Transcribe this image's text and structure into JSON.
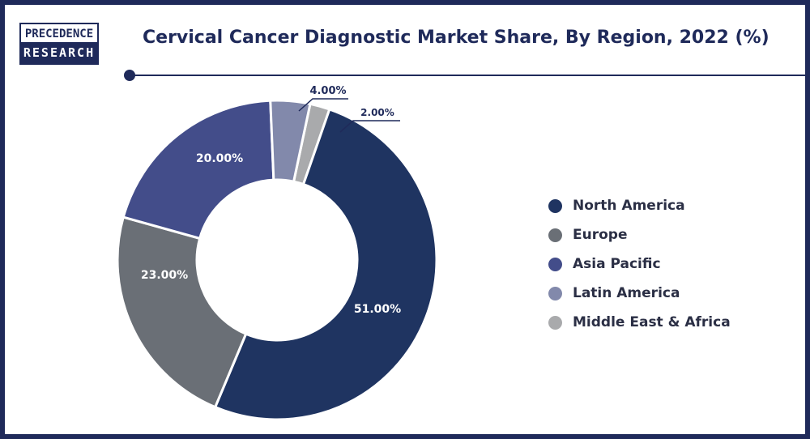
{
  "logo": {
    "line1": "PRECEDENCE",
    "line2": "RESEARCH"
  },
  "chart_data": {
    "type": "pie",
    "title": "Cervical Cancer Diagnostic Market Share, By Region, 2022 (%)",
    "donut": true,
    "legend_position": "right",
    "categories": [
      "North America",
      "Europe",
      "Asia Pacific",
      "Latin America",
      "Middle East & Africa"
    ],
    "values": [
      51,
      23,
      20,
      4,
      2
    ],
    "labels": [
      "51.00%",
      "23.00%",
      "20.00%",
      "4.00%",
      "2.00%"
    ],
    "colors": [
      "#1f3461",
      "#6a6f76",
      "#434d8a",
      "#8289ab",
      "#a9aaac"
    ]
  }
}
